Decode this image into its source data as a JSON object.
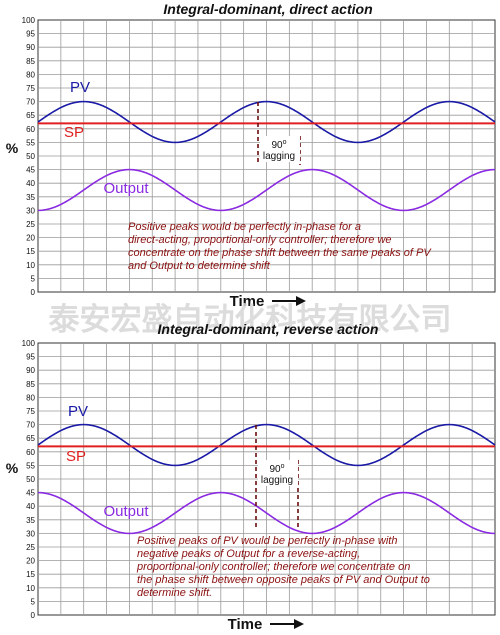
{
  "watermark": "泰安宏盛自动化科技有限公司",
  "chart_data": [
    {
      "type": "line",
      "title": "Integral-dominant, direct action",
      "ylabel": "%",
      "xlabel": "Time",
      "ylim": [
        0,
        100
      ],
      "yticks": [
        0,
        5,
        10,
        15,
        20,
        25,
        30,
        35,
        40,
        45,
        50,
        55,
        60,
        65,
        70,
        75,
        80,
        85,
        90,
        95,
        100
      ],
      "grid": true,
      "series": [
        {
          "name": "PV",
          "color": "#1a1aa6",
          "shape": "sine",
          "center": 62.5,
          "amplitude": 7.5,
          "periods": 2.5,
          "phase_deg": 0
        },
        {
          "name": "SP",
          "color": "#e02020",
          "shape": "constant",
          "value": 62
        },
        {
          "name": "Output",
          "color": "#8a2be2",
          "shape": "sine",
          "center": 37.5,
          "amplitude": 7.5,
          "periods": 2.5,
          "phase_deg": -90
        }
      ],
      "annotation": {
        "label_line1": "90",
        "label_sup": "o",
        "label_line2": "lagging",
        "note": "Positive peaks would be perfectly in-phase for a direct-acting, proportional-only controller; therefore we concentrate on the phase shift between the same peaks of PV and Output to determine shift"
      }
    },
    {
      "type": "line",
      "title": "Integral-dominant, reverse action",
      "ylabel": "%",
      "xlabel": "Time",
      "ylim": [
        0,
        100
      ],
      "yticks": [
        0,
        5,
        10,
        15,
        20,
        25,
        30,
        35,
        40,
        45,
        50,
        55,
        60,
        65,
        70,
        75,
        80,
        85,
        90,
        95,
        100
      ],
      "grid": true,
      "series": [
        {
          "name": "PV",
          "color": "#1a1aa6",
          "shape": "sine",
          "center": 62.5,
          "amplitude": 7.5,
          "periods": 2.5,
          "phase_deg": 0
        },
        {
          "name": "SP",
          "color": "#e02020",
          "shape": "constant",
          "value": 62
        },
        {
          "name": "Output",
          "color": "#8a2be2",
          "shape": "sine",
          "center": 37.5,
          "amplitude": 7.5,
          "periods": 2.5,
          "phase_deg": 90
        }
      ],
      "annotation": {
        "label_line1": "90",
        "label_sup": "o",
        "label_line2": "lagging",
        "note": "Positive peaks of PV would be perfectly in-phase with negative peaks of Output for a reverse-acting, proportional-only controller; therefore we concentrate on the phase shift between opposite peaks of PV and Output to determine shift."
      }
    }
  ]
}
